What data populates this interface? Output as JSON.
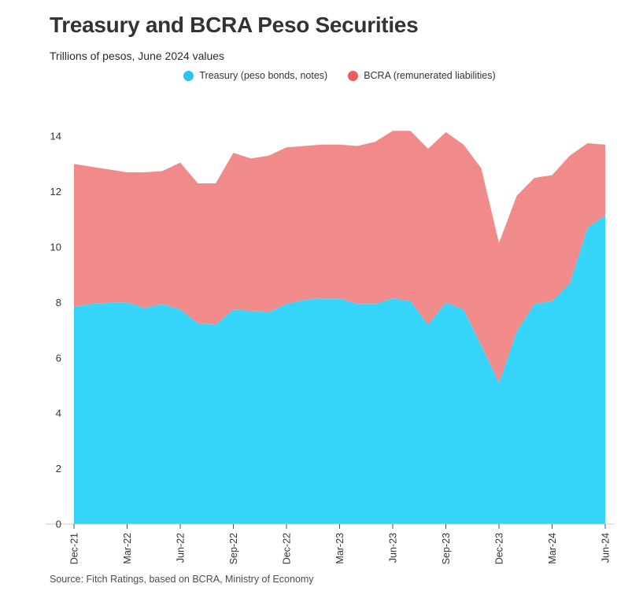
{
  "header": {
    "title": "Treasury and BCRA Peso Securities",
    "subtitle": "Trillions of pesos, June 2024 values"
  },
  "source_note": "Source: Fitch Ratings, based on BCRA, Ministry of Economy",
  "colors": {
    "treasury_area": "#37d4fa",
    "treasury_dot": "#2cc2ee",
    "bcra_area": "#f18b8b",
    "bcra_dot": "#ee5b5b",
    "axis_line": "#cccccc",
    "tick_mark": "#555555",
    "axis_text": "#333333"
  },
  "chart_data": {
    "type": "area",
    "stacked": true,
    "title": "Treasury and BCRA Peso Securities",
    "subtitle": "Trillions of pesos, June 2024 values",
    "xlabel": "",
    "ylabel": "Trillions of pesos",
    "ylim": [
      0,
      14
    ],
    "ytick_step": 2,
    "grid": false,
    "legend_position": "top",
    "x": [
      "Dec-21",
      "Jan-22",
      "Feb-22",
      "Mar-22",
      "Apr-22",
      "May-22",
      "Jun-22",
      "Jul-22",
      "Aug-22",
      "Sep-22",
      "Oct-22",
      "Nov-22",
      "Dec-22",
      "Jan-23",
      "Feb-23",
      "Mar-23",
      "Apr-23",
      "May-23",
      "Jun-23",
      "Jul-23",
      "Aug-23",
      "Sep-23",
      "Oct-23",
      "Nov-23",
      "Dec-23",
      "Jan-24",
      "Feb-24",
      "Mar-24",
      "Apr-24",
      "May-24",
      "Jun-24"
    ],
    "x_tick_labels": [
      "Dec-21",
      "Mar-22",
      "Jun-22",
      "Sep-22",
      "Dec-22",
      "Mar-23",
      "Jun-23",
      "Sep-23",
      "Dec-23",
      "Mar-24",
      "Jun-24"
    ],
    "series": [
      {
        "name": "Treasury (peso bonds, notes)",
        "values": [
          7.85,
          7.95,
          8.0,
          8.0,
          7.8,
          7.95,
          7.75,
          7.25,
          7.2,
          7.75,
          7.7,
          7.65,
          7.95,
          8.1,
          8.15,
          8.15,
          7.95,
          7.95,
          8.15,
          8.05,
          7.2,
          8.0,
          7.75,
          6.45,
          5.1,
          6.95,
          7.95,
          8.05,
          8.7,
          10.7,
          11.15
        ]
      },
      {
        "name": "BCRA (remunerated liabilities)",
        "values": [
          5.15,
          4.95,
          4.8,
          4.7,
          4.9,
          4.8,
          5.3,
          5.05,
          5.1,
          5.65,
          5.5,
          5.65,
          5.65,
          5.55,
          5.55,
          5.55,
          5.7,
          5.85,
          6.05,
          6.15,
          6.35,
          6.15,
          5.95,
          6.4,
          5.05,
          4.9,
          4.55,
          4.55,
          4.6,
          3.05,
          2.55
        ]
      }
    ]
  }
}
